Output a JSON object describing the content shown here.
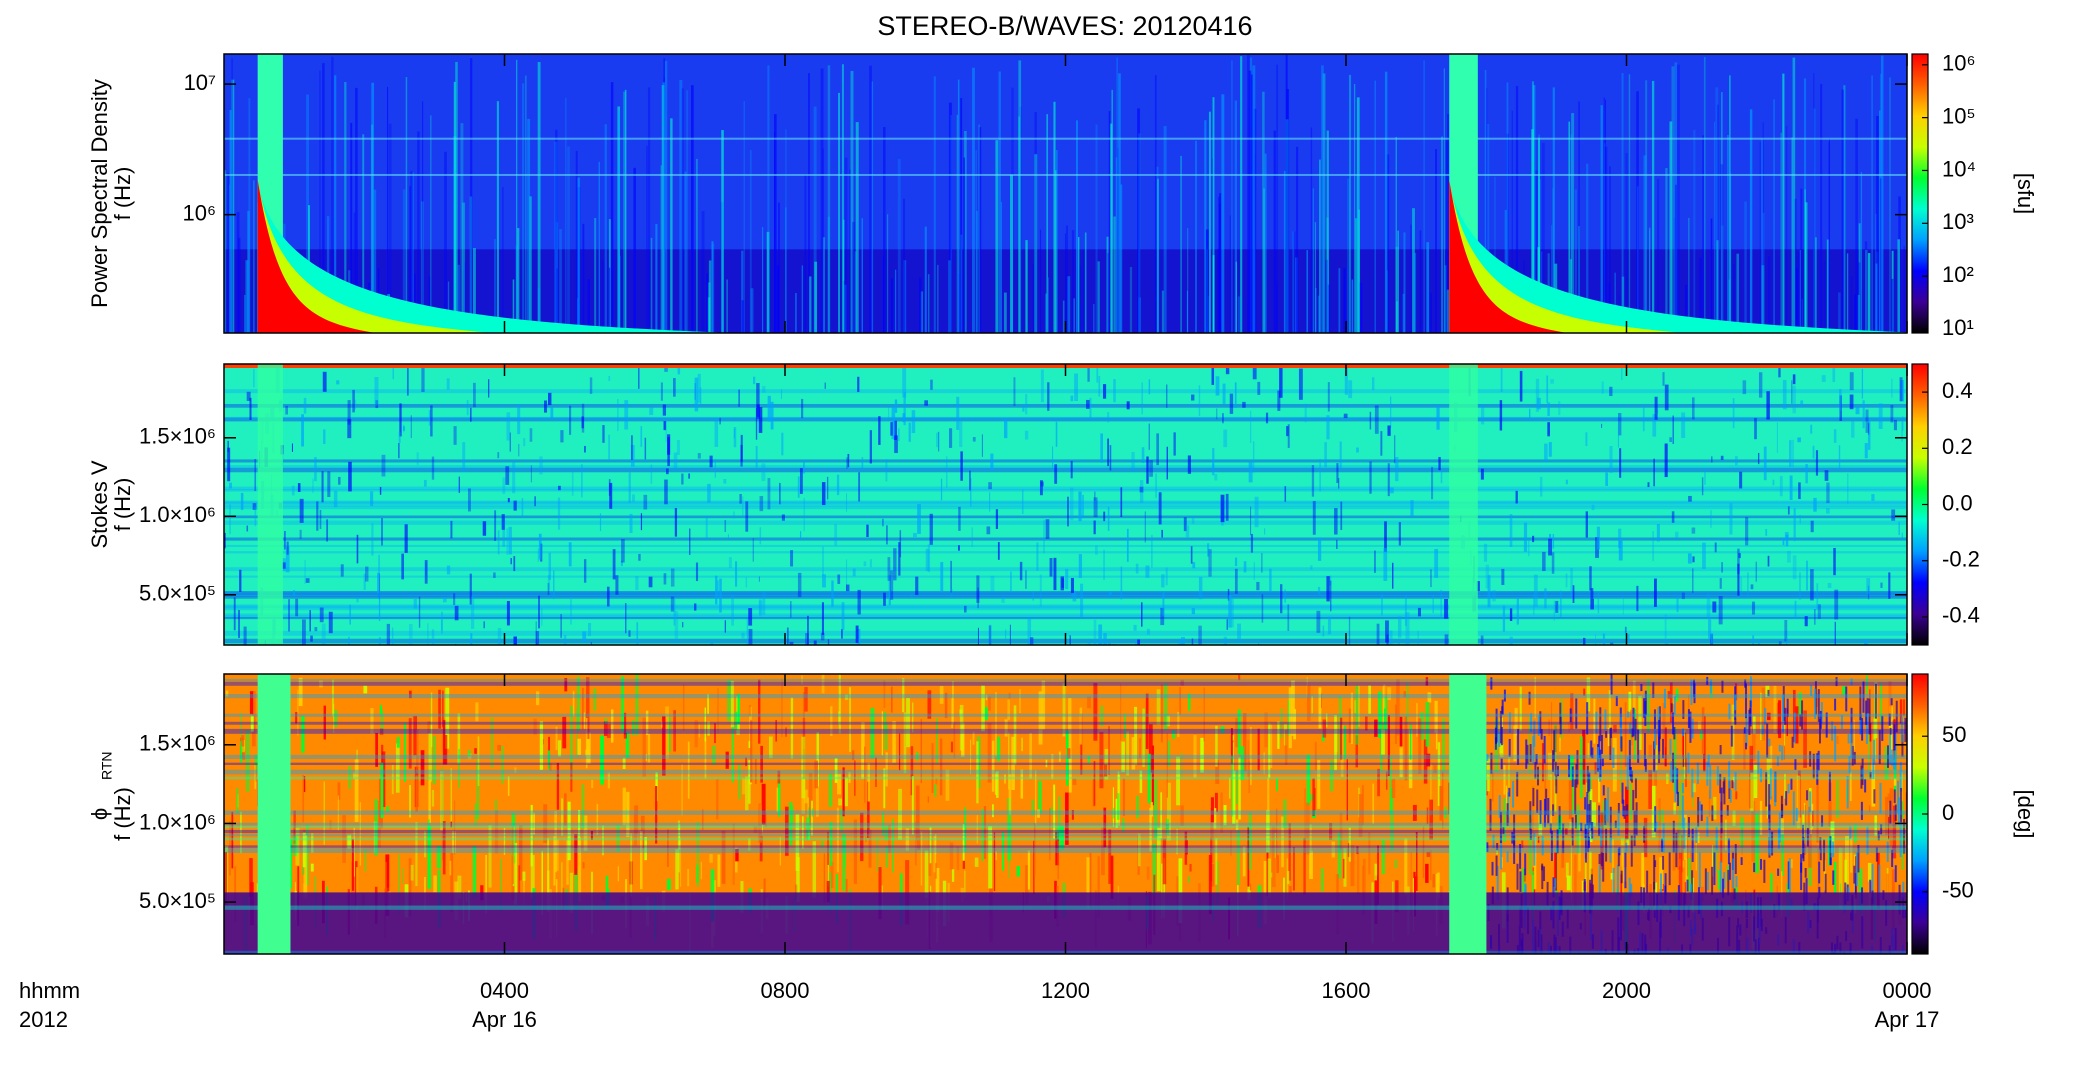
{
  "chart_data": {
    "type": "spectrogram",
    "title": "STEREO-B/WAVES: 20120416",
    "xlim": [
      0,
      24
    ],
    "xticks": [
      {
        "value": 4,
        "label": "0400"
      },
      {
        "value": 8,
        "label": "0800"
      },
      {
        "value": 12,
        "label": "1200"
      },
      {
        "value": 16,
        "label": "1600"
      },
      {
        "value": 20,
        "label": "2000"
      },
      {
        "value": 24,
        "label": "0000"
      }
    ],
    "x_date_labels": [
      {
        "value": 4,
        "label": "Apr 16"
      },
      {
        "value": 24,
        "label": "Apr 17"
      }
    ],
    "x_row_labels": [
      "hhmm",
      "2012"
    ],
    "colormap": [
      "#000000",
      "#3c0096",
      "#0000ff",
      "#00a0ff",
      "#00ffd0",
      "#00ff30",
      "#c8ff00",
      "#ffd000",
      "#ff6000",
      "#ff0000"
    ],
    "panels": [
      {
        "ylabel": [
          "Power Spectral Density",
          "f (Hz)"
        ],
        "ylog": true,
        "ylim": [
          124000,
          17000000
        ],
        "yticks": [
          {
            "value": 1000000,
            "label": "10⁶"
          },
          {
            "value": 10000000,
            "label": "10⁷"
          }
        ],
        "colorbar": {
          "label": "[sfu]",
          "log": true,
          "lim": [
            8.4,
            1600000
          ],
          "ticks": [
            {
              "value": 10,
              "label": "10¹"
            },
            {
              "value": 100,
              "label": "10²"
            },
            {
              "value": 1000,
              "label": "10³"
            },
            {
              "value": 10000,
              "label": "10⁴"
            },
            {
              "value": 100000,
              "label": "10⁵"
            },
            {
              "value": 1000000,
              "label": "10⁶"
            }
          ]
        }
      },
      {
        "ylabel": [
          "Stokes V",
          "f (Hz)"
        ],
        "ylog": false,
        "ylim": [
          180000,
          1970000
        ],
        "yticks": [
          {
            "value": 500000,
            "label": "5.0×10⁵"
          },
          {
            "value": 1000000,
            "label": "1.0×10⁶"
          },
          {
            "value": 1500000,
            "label": "1.5×10⁶"
          }
        ],
        "colorbar": {
          "label": "",
          "log": false,
          "lim": [
            -0.5,
            0.5
          ],
          "ticks": [
            -0.4,
            -0.2,
            {
              "value": 0,
              "label": "0.0"
            },
            0.2,
            0.4
          ]
        }
      },
      {
        "ylabel": [
          "ϕ",
          "f (Hz)"
        ],
        "ylabel_sub": "RTN",
        "ylog": false,
        "ylim": [
          170000,
          1950000
        ],
        "yticks": [
          {
            "value": 500000,
            "label": "5.0×10⁵"
          },
          {
            "value": 1000000,
            "label": "1.0×10⁶"
          },
          {
            "value": 1500000,
            "label": "1.5×10⁶"
          }
        ],
        "colorbar": {
          "label": "[deg]",
          "log": false,
          "lim": [
            -90,
            90
          ],
          "ticks": [
            -50,
            0,
            50
          ]
        }
      }
    ]
  }
}
